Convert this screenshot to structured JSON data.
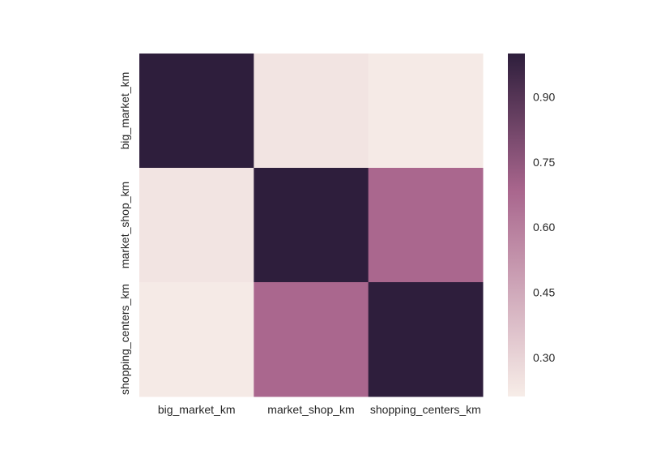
{
  "chart_data": {
    "type": "heatmap",
    "rows": [
      "big_market_km",
      "market_shop_km",
      "shopping_centers_km"
    ],
    "columns": [
      "big_market_km",
      "market_shop_km",
      "shopping_centers_km"
    ],
    "values": [
      [
        1.0,
        0.24,
        0.22
      ],
      [
        0.24,
        1.0,
        0.68
      ],
      [
        0.22,
        0.68,
        1.0
      ]
    ],
    "colorbar": {
      "range": [
        0.21,
        1.0
      ],
      "ticks": [
        0.3,
        0.45,
        0.6,
        0.75,
        0.9
      ],
      "tick_labels": [
        "0.30",
        "0.45",
        "0.60",
        "0.75",
        "0.90"
      ]
    },
    "colormap": {
      "low": "#f7ede8",
      "mid": "#a9668d",
      "high": "#2e1e3c"
    },
    "title": "",
    "xlabel": "",
    "ylabel": "",
    "grid": false,
    "legend": "colorbar-right"
  }
}
